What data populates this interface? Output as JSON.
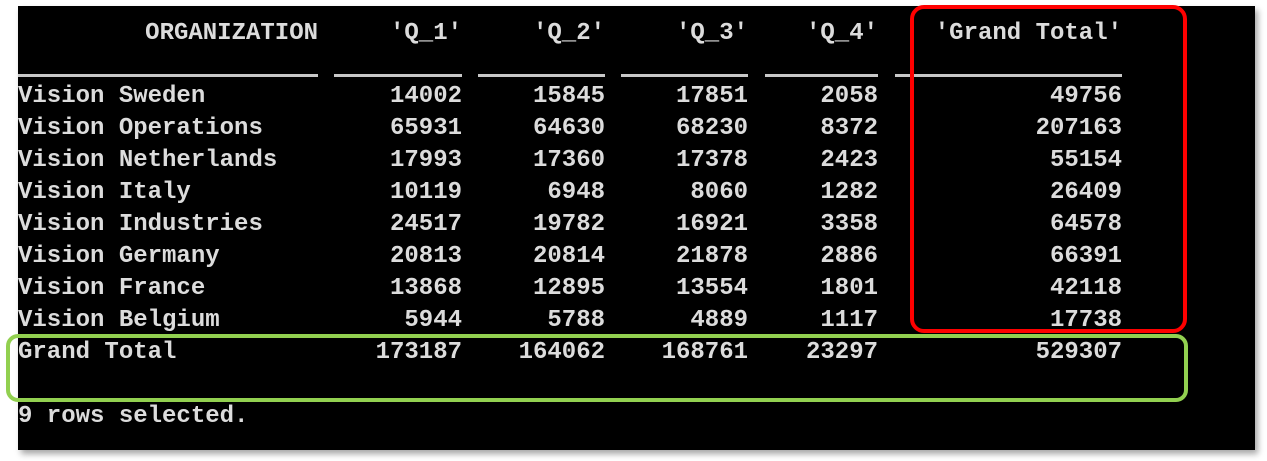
{
  "table": {
    "headers": [
      "ORGANIZATION",
      "'Q_1'",
      "'Q_2'",
      "'Q_3'",
      "'Q_4'",
      "'Grand Total'"
    ],
    "rows": [
      [
        "Vision Sweden",
        "14002",
        "15845",
        "17851",
        "2058",
        "49756"
      ],
      [
        "Vision Operations",
        "65931",
        "64630",
        "68230",
        "8372",
        "207163"
      ],
      [
        "Vision Netherlands",
        "17993",
        "17360",
        "17378",
        "2423",
        "55154"
      ],
      [
        "Vision Italy",
        "10119",
        "6948",
        "8060",
        "1282",
        "26409"
      ],
      [
        "Vision Industries",
        "24517",
        "19782",
        "16921",
        "3358",
        "64578"
      ],
      [
        "Vision Germany",
        "20813",
        "20814",
        "21878",
        "2886",
        "66391"
      ],
      [
        "Vision France",
        "13868",
        "12895",
        "13554",
        "1801",
        "42118"
      ],
      [
        "Vision Belgium",
        "5944",
        "5788",
        "4889",
        "1117",
        "17738"
      ]
    ],
    "total_row": [
      "Grand Total",
      "173187",
      "164062",
      "168761",
      "23297",
      "529307"
    ]
  },
  "status": "9 rows selected.",
  "highlights": {
    "grand_total_column_color": "#ff0000",
    "grand_total_row_color": "#92d050"
  }
}
